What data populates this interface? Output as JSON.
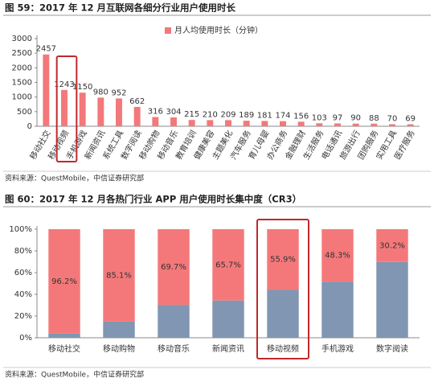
{
  "chart_data": [
    {
      "type": "bar",
      "title": "图 59：2017 年 12 月互联网各细分行业用户使用时长",
      "source": "资料来源：QuestMobile，中信证券研究部",
      "categories": [
        "移动社交",
        "移动视频",
        "手机游戏",
        "新闻资讯",
        "系统工具",
        "数字阅读",
        "移动购物",
        "移动音乐",
        "教育培训",
        "健康美容",
        "主题美化",
        "汽车服务",
        "育儿母婴",
        "办公商务",
        "金融理财",
        "生活服务",
        "电话通讯",
        "旅游出行",
        "团购服务",
        "实用工具",
        "医疗服务"
      ],
      "series": [
        {
          "name": "月人均使用时长（分钟）",
          "color": "#f4787a",
          "values": [
            2457,
            1243,
            1150,
            980,
            952,
            662,
            316,
            304,
            215,
            210,
            209,
            189,
            181,
            174,
            156,
            103,
            97,
            90,
            88,
            70,
            69
          ]
        }
      ],
      "ylim": [
        0,
        3000
      ],
      "yticks": [
        0,
        500,
        1000,
        1500,
        2000,
        2500,
        3000
      ],
      "grid": false,
      "legend": "top"
    },
    {
      "type": "bar",
      "stacked": true,
      "title": "图 60：2017 年 12 月各热门行业 APP 用户使用时长集中度（CR3）",
      "source": "资料来源：QuestMobile，中信证券研究部",
      "categories": [
        "移动社交",
        "移动购物",
        "移动音乐",
        "新闻资讯",
        "移动视频",
        "手机游戏",
        "数字阅读"
      ],
      "series": [
        {
          "color": "#8096b2",
          "values": [
            3.8,
            14.9,
            30.3,
            34.3,
            44.1,
            51.7,
            69.8
          ]
        },
        {
          "color": "#f4787a",
          "values": [
            96.2,
            85.1,
            69.7,
            65.7,
            55.9,
            48.3,
            30.2
          ],
          "value_labels": [
            "96.2%",
            "85.1%",
            "69.7%",
            "65.7%",
            "55.9%",
            "48.3%",
            "30.2%"
          ]
        }
      ],
      "ylim": [
        0,
        100
      ],
      "yticks": [
        {
          "value": 0,
          "label": "0%"
        },
        {
          "value": 20,
          "label": "20%"
        },
        {
          "value": 40,
          "label": "40%"
        },
        {
          "value": 60,
          "label": "60%"
        },
        {
          "value": 80,
          "label": "80%"
        },
        {
          "value": 100,
          "label": "100%"
        }
      ],
      "grid": false
    }
  ]
}
